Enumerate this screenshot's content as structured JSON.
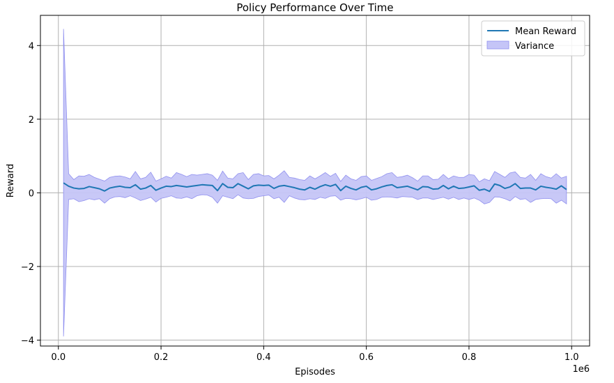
{
  "chart_data": {
    "type": "line",
    "title": "Policy Performance Over Time",
    "xlabel": "Episodes",
    "ylabel": "Reward",
    "x_offset_label": "1e6",
    "xlim": [
      -0.035,
      1.035
    ],
    "ylim": [
      -4.16,
      4.82
    ],
    "x_ticks": [
      0.0,
      0.2,
      0.4,
      0.6,
      0.8,
      1.0
    ],
    "x_tick_labels": [
      "0.0",
      "0.2",
      "0.4",
      "0.6",
      "0.8",
      "1.0"
    ],
    "y_ticks": [
      -4,
      -2,
      0,
      2,
      4
    ],
    "y_tick_labels": [
      "−4",
      "−2",
      "0",
      "2",
      "4"
    ],
    "grid": true,
    "legend_position": "top-right",
    "colors": {
      "mean": "#1f77b4",
      "variance_fill": "#c5c5f7",
      "variance_edge": "#8f8fef",
      "grid": "#b0b0b0"
    },
    "x": [
      0.01,
      0.02,
      0.03,
      0.04,
      0.05,
      0.06,
      0.07,
      0.08,
      0.09,
      0.1,
      0.11,
      0.12,
      0.13,
      0.14,
      0.15,
      0.16,
      0.17,
      0.18,
      0.19,
      0.2,
      0.21,
      0.22,
      0.23,
      0.24,
      0.25,
      0.26,
      0.27,
      0.28,
      0.29,
      0.3,
      0.31,
      0.32,
      0.33,
      0.34,
      0.35,
      0.36,
      0.37,
      0.38,
      0.39,
      0.4,
      0.41,
      0.42,
      0.43,
      0.44,
      0.45,
      0.46,
      0.47,
      0.48,
      0.49,
      0.5,
      0.51,
      0.52,
      0.53,
      0.54,
      0.55,
      0.56,
      0.57,
      0.58,
      0.59,
      0.6,
      0.61,
      0.62,
      0.63,
      0.64,
      0.65,
      0.66,
      0.67,
      0.68,
      0.69,
      0.7,
      0.71,
      0.72,
      0.73,
      0.74,
      0.75,
      0.76,
      0.77,
      0.78,
      0.79,
      0.8,
      0.81,
      0.82,
      0.83,
      0.84,
      0.85,
      0.86,
      0.87,
      0.88,
      0.89,
      0.9,
      0.91,
      0.92,
      0.93,
      0.94,
      0.95,
      0.96,
      0.97,
      0.98,
      0.99
    ],
    "series": [
      {
        "name": "Mean Reward",
        "type": "line",
        "values": [
          0.27,
          0.18,
          0.13,
          0.11,
          0.12,
          0.17,
          0.14,
          0.11,
          0.05,
          0.13,
          0.16,
          0.18,
          0.15,
          0.14,
          0.22,
          0.1,
          0.13,
          0.2,
          0.07,
          0.13,
          0.18,
          0.17,
          0.2,
          0.18,
          0.16,
          0.18,
          0.2,
          0.22,
          0.21,
          0.2,
          0.06,
          0.25,
          0.15,
          0.14,
          0.25,
          0.18,
          0.11,
          0.19,
          0.21,
          0.2,
          0.21,
          0.12,
          0.18,
          0.2,
          0.17,
          0.14,
          0.1,
          0.08,
          0.15,
          0.1,
          0.17,
          0.22,
          0.18,
          0.23,
          0.06,
          0.18,
          0.12,
          0.08,
          0.15,
          0.18,
          0.08,
          0.11,
          0.16,
          0.2,
          0.22,
          0.14,
          0.16,
          0.18,
          0.13,
          0.08,
          0.17,
          0.16,
          0.1,
          0.11,
          0.2,
          0.11,
          0.18,
          0.12,
          0.13,
          0.16,
          0.19,
          0.07,
          0.1,
          0.04,
          0.24,
          0.2,
          0.12,
          0.16,
          0.25,
          0.12,
          0.13,
          0.13,
          0.08,
          0.18,
          0.15,
          0.13,
          0.1,
          0.19,
          0.09
        ]
      },
      {
        "name": "Variance",
        "type": "band",
        "upper": [
          4.45,
          0.52,
          0.36,
          0.46,
          0.45,
          0.5,
          0.42,
          0.37,
          0.32,
          0.42,
          0.45,
          0.46,
          0.43,
          0.38,
          0.58,
          0.38,
          0.42,
          0.56,
          0.32,
          0.38,
          0.45,
          0.4,
          0.55,
          0.5,
          0.44,
          0.5,
          0.48,
          0.5,
          0.52,
          0.48,
          0.34,
          0.59,
          0.4,
          0.38,
          0.52,
          0.55,
          0.36,
          0.5,
          0.52,
          0.46,
          0.47,
          0.38,
          0.48,
          0.6,
          0.42,
          0.4,
          0.36,
          0.34,
          0.46,
          0.38,
          0.46,
          0.55,
          0.45,
          0.53,
          0.31,
          0.48,
          0.38,
          0.34,
          0.44,
          0.46,
          0.34,
          0.39,
          0.44,
          0.52,
          0.55,
          0.42,
          0.44,
          0.48,
          0.41,
          0.32,
          0.46,
          0.46,
          0.36,
          0.37,
          0.5,
          0.38,
          0.46,
          0.42,
          0.42,
          0.5,
          0.48,
          0.3,
          0.38,
          0.33,
          0.58,
          0.5,
          0.42,
          0.54,
          0.57,
          0.42,
          0.4,
          0.5,
          0.34,
          0.52,
          0.44,
          0.4,
          0.52,
          0.4,
          0.45
        ],
        "lower": [
          -3.9,
          -0.18,
          -0.16,
          -0.24,
          -0.21,
          -0.16,
          -0.19,
          -0.16,
          -0.28,
          -0.16,
          -0.11,
          -0.1,
          -0.13,
          -0.08,
          -0.14,
          -0.21,
          -0.17,
          -0.12,
          -0.25,
          -0.15,
          -0.12,
          -0.08,
          -0.14,
          -0.15,
          -0.11,
          -0.16,
          -0.08,
          -0.05,
          -0.06,
          -0.12,
          -0.28,
          -0.08,
          -0.12,
          -0.16,
          -0.05,
          -0.14,
          -0.16,
          -0.15,
          -0.1,
          -0.08,
          -0.06,
          -0.16,
          -0.12,
          -0.26,
          -0.08,
          -0.14,
          -0.18,
          -0.19,
          -0.16,
          -0.18,
          -0.12,
          -0.15,
          -0.09,
          -0.08,
          -0.2,
          -0.15,
          -0.16,
          -0.19,
          -0.16,
          -0.12,
          -0.2,
          -0.18,
          -0.12,
          -0.11,
          -0.12,
          -0.14,
          -0.1,
          -0.11,
          -0.12,
          -0.18,
          -0.14,
          -0.14,
          -0.18,
          -0.15,
          -0.12,
          -0.17,
          -0.12,
          -0.18,
          -0.14,
          -0.18,
          -0.14,
          -0.2,
          -0.3,
          -0.26,
          -0.11,
          -0.12,
          -0.16,
          -0.22,
          -0.1,
          -0.18,
          -0.16,
          -0.26,
          -0.18,
          -0.16,
          -0.15,
          -0.16,
          -0.28,
          -0.2,
          -0.3
        ]
      }
    ]
  }
}
